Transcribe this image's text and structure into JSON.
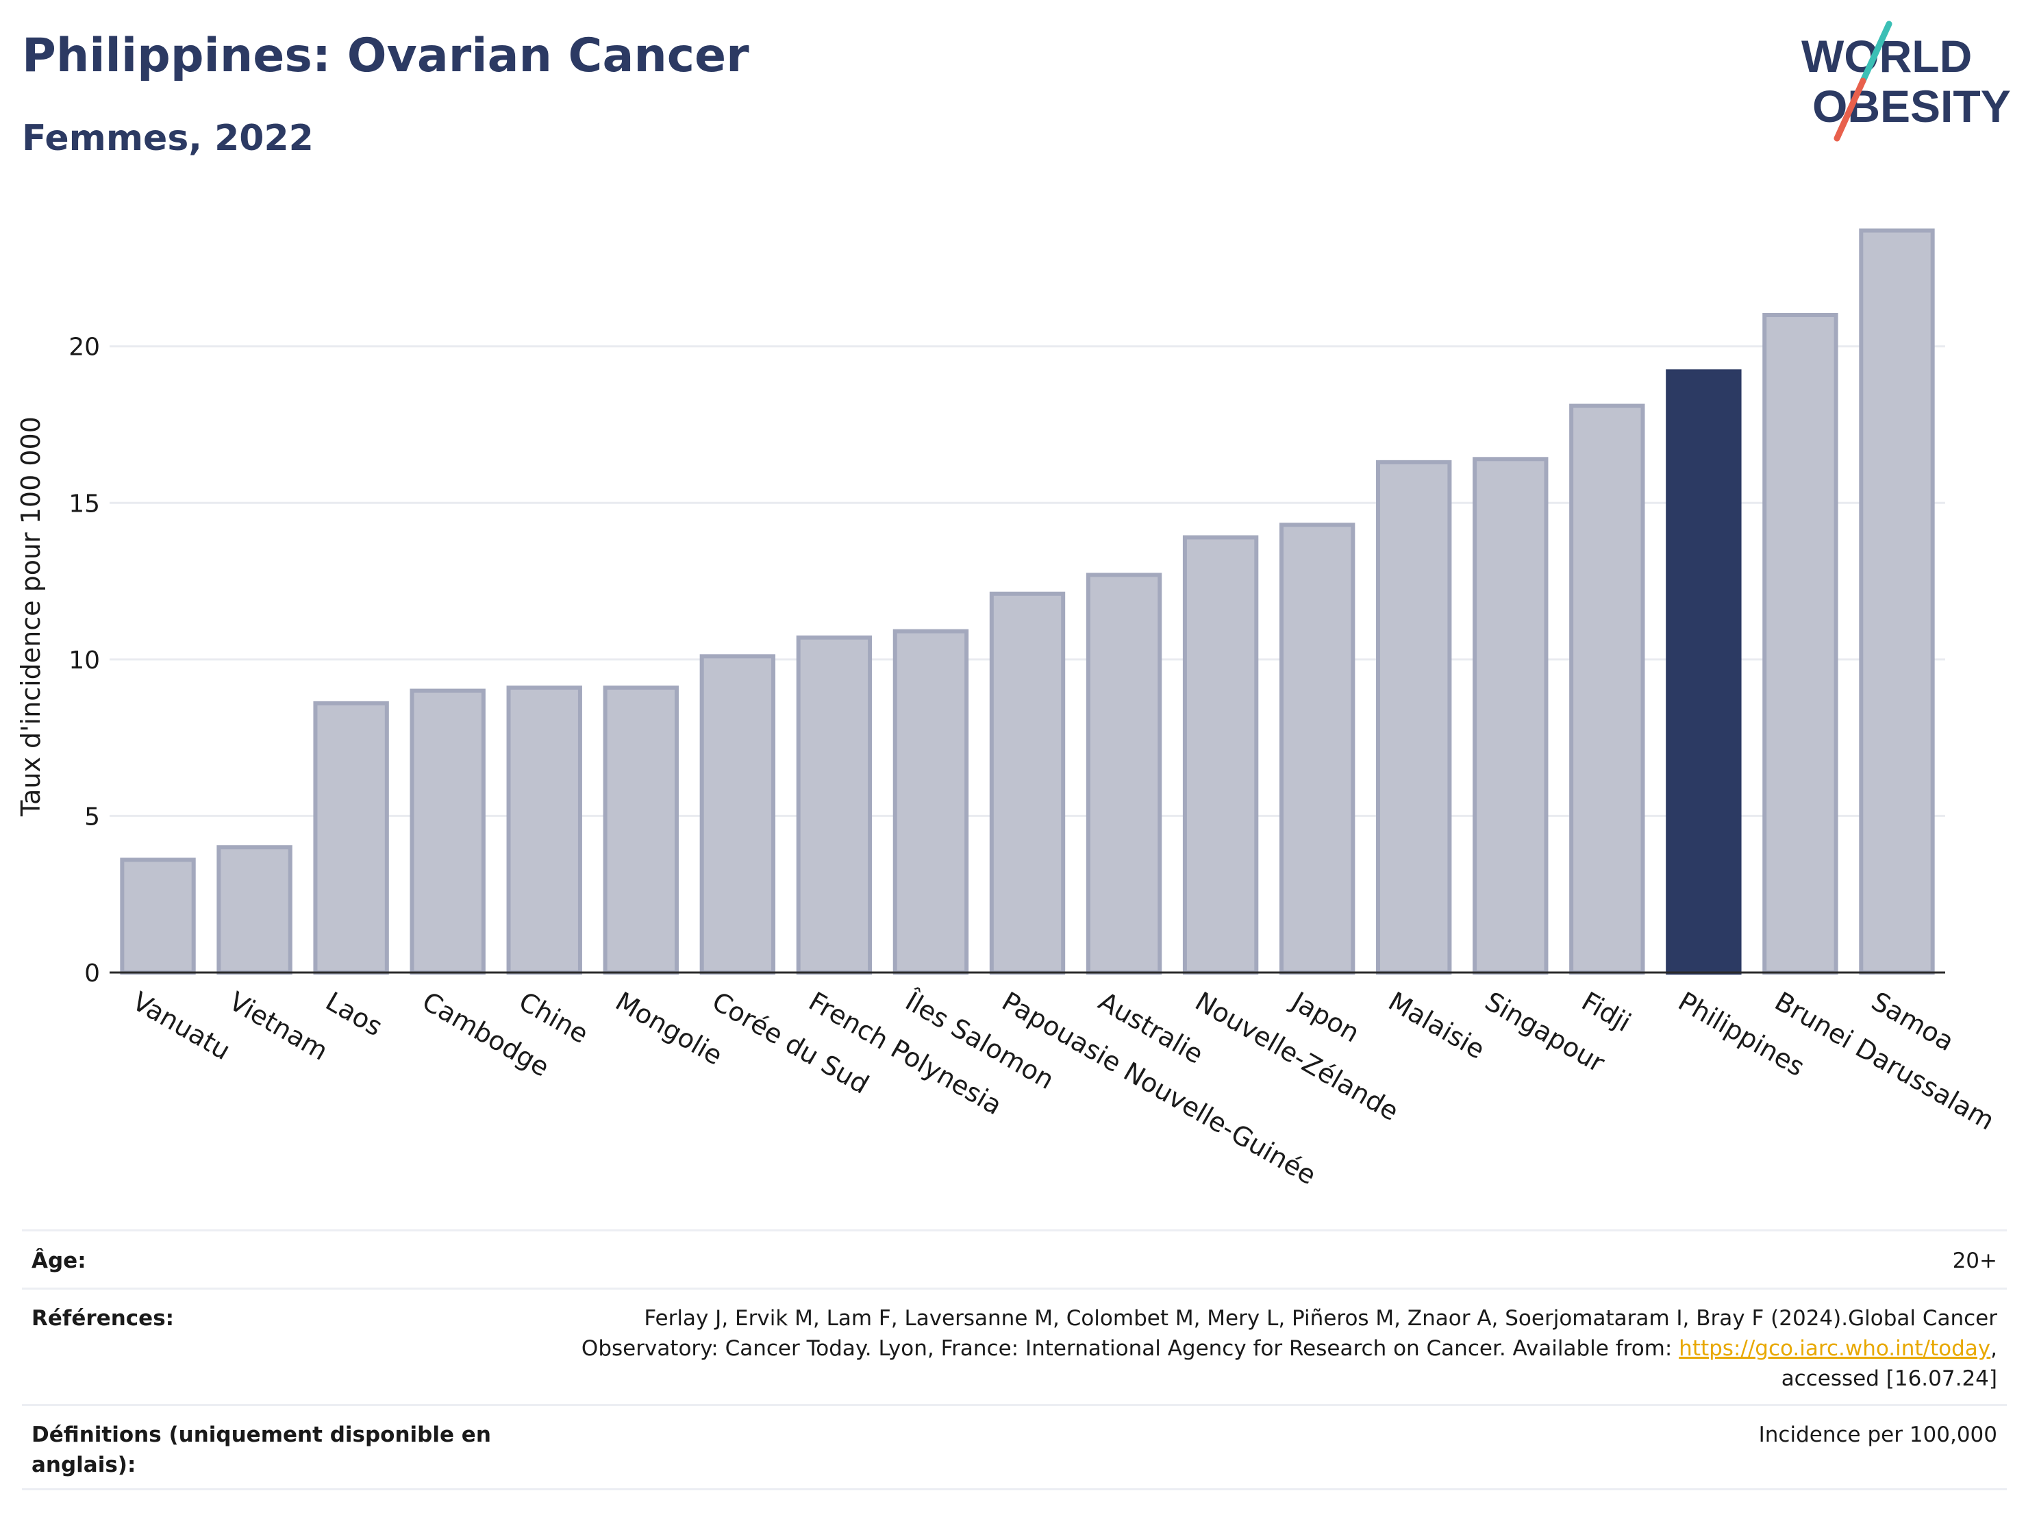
{
  "header": {
    "title": "Philippines: Ovarian Cancer",
    "subtitle": "Femmes, 2022"
  },
  "logo": {
    "line1": "WORLD",
    "line2": "OBESITY",
    "colors": {
      "text": "#2c3a63",
      "slash_top": "#3bbfb5",
      "slash_bottom": "#e8604c"
    }
  },
  "chart_data": {
    "type": "bar",
    "ylabel": "Taux d'incidence pour 100 000",
    "ylim": [
      0,
      24.5
    ],
    "yticks": [
      0,
      5,
      10,
      15,
      20
    ],
    "grid": true,
    "categories": [
      "Vanuatu",
      "Vietnam",
      "Laos",
      "Cambodge",
      "Chine",
      "Mongolie",
      "Corée du Sud",
      "French Polynesia",
      "Îles Salomon",
      "Papouasie Nouvelle-Guinée",
      "Australie",
      "Nouvelle-Zélande",
      "Japon",
      "Malaisie",
      "Singapour",
      "Fidji",
      "Philippines",
      "Brunei Darussalam",
      "Samoa"
    ],
    "values": [
      3.6,
      4.0,
      8.6,
      9.0,
      9.1,
      9.1,
      10.1,
      10.7,
      10.9,
      12.1,
      12.7,
      13.9,
      14.3,
      16.3,
      16.4,
      18.1,
      19.2,
      21.0,
      23.7
    ],
    "highlight": "Philippines",
    "colors": {
      "bar": "#bfc2cf",
      "bar_border": "#a3a8bd",
      "highlight": "#2c3a63"
    }
  },
  "meta": {
    "age_label": "Âge:",
    "age_value": "20+",
    "ref_label": "Références:",
    "ref_line1": "Ferlay J, Ervik M, Lam F, Laversanne M, Colombet M, Mery L, Piñeros M, Znaor A, Soerjomataram I, Bray F (2024).Global Cancer",
    "ref_line2_pre": "Observatory: Cancer Today. Lyon, France: International Agency for Research on Cancer. Available from: ",
    "ref_link": "https://gco.iarc.who.int/today",
    "ref_line2_post": ",",
    "ref_line3": "accessed [16.07.24]",
    "def_label": "Définitions (uniquement disponible en anglais):",
    "def_value": "Incidence per 100,000"
  }
}
